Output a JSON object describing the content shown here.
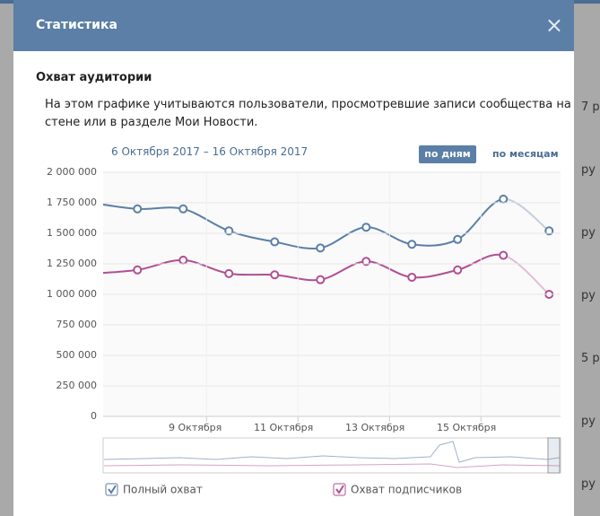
{
  "modal": {
    "title": "Статистика",
    "close": "×",
    "section_title": "Охват аудитории",
    "description": [
      "На этом графике учитываются пользователи, просмотревшие записи сообщества на",
      "стене или в разделе Мои Новости."
    ],
    "date_range": "6 Октября 2017 – 16 Октября 2017",
    "buttons": [
      "по дням",
      "по месяцам"
    ]
  },
  "background": {
    "fragments": [
      "7 р",
      "ру",
      "ру",
      "ру",
      "5 р",
      "ру",
      "ру"
    ]
  },
  "chart_data": {
    "type": "line",
    "x": [
      6,
      7,
      8,
      9,
      10,
      11,
      12,
      13,
      14,
      15,
      16
    ],
    "xlim": [
      6.25,
      16.25
    ],
    "xticks": [
      {
        "value": 9,
        "label": "9 Октября"
      },
      {
        "value": 11,
        "label": "11 Октября"
      },
      {
        "value": 13,
        "label": "13 Октября"
      },
      {
        "value": 15,
        "label": "15 Октября"
      }
    ],
    "ylim": [
      0,
      2000000
    ],
    "yticks": [
      {
        "value": 0,
        "label": "0"
      },
      {
        "value": 250000,
        "label": "250 000"
      },
      {
        "value": 500000,
        "label": "500 000"
      },
      {
        "value": 750000,
        "label": "750 000"
      },
      {
        "value": 1000000,
        "label": "1 000 000"
      },
      {
        "value": 1250000,
        "label": "1 250 000"
      },
      {
        "value": 1500000,
        "label": "1 500 000"
      },
      {
        "value": 1750000,
        "label": "1 750 000"
      },
      {
        "value": 2000000,
        "label": "2 000 000"
      }
    ],
    "grid": true,
    "series": [
      {
        "name": "Полный охват",
        "color": "#5b7fa6",
        "values": [
          1750000,
          1700000,
          1700000,
          1520000,
          1430000,
          1380000,
          1550000,
          1410000,
          1450000,
          1780000,
          1520000
        ]
      },
      {
        "name": "Охват подписчиков",
        "color": "#b04f93",
        "values": [
          1170000,
          1200000,
          1280000,
          1170000,
          1160000,
          1120000,
          1270000,
          1140000,
          1200000,
          1320000,
          1000000
        ]
      }
    ]
  }
}
